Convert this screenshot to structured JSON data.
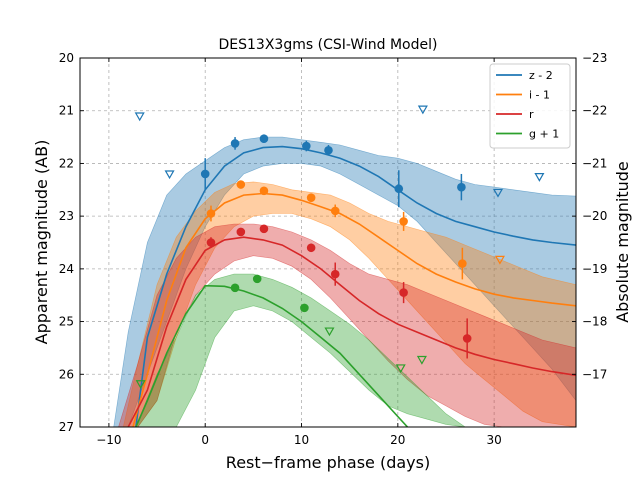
{
  "chart_data": {
    "type": "line",
    "title": "DES13X3gms (CSI-Wind Model)",
    "xlabel": "Rest−frame phase (days)",
    "ylabel": "Apparent magnitude (AB)",
    "y2label": "Absolute magnitude",
    "xlim": [
      -13,
      38.5
    ],
    "ylim": [
      20,
      27
    ],
    "y_inverted": true,
    "y2lim": [
      -23,
      -16
    ],
    "grid": true,
    "legend_position": "top-right",
    "xticks": [
      -10,
      0,
      10,
      20,
      30
    ],
    "xtick_labels": [
      "−10",
      "0",
      "10",
      "20",
      "30"
    ],
    "yticks": [
      20,
      21,
      22,
      23,
      24,
      25,
      26,
      27
    ],
    "ytick_labels": [
      "20",
      "21",
      "22",
      "23",
      "24",
      "25",
      "26",
      "27"
    ],
    "y2ticks": [
      -23,
      -22,
      -21,
      -20,
      -19,
      -18,
      -17
    ],
    "y2tick_labels": [
      "−23",
      "−22",
      "−21",
      "−20",
      "−19",
      "−18",
      "−17"
    ],
    "series": [
      {
        "name": "z - 2",
        "color": "#1f77b4",
        "model_x": [
          -7.2,
          -6,
          -4,
          -2,
          0,
          2,
          4,
          6,
          8,
          10,
          12,
          14,
          16,
          18,
          20,
          22,
          24,
          26,
          28,
          30,
          32,
          34,
          36,
          38.5
        ],
        "model_y": [
          27,
          25.3,
          24.1,
          23.2,
          22.5,
          22.05,
          21.8,
          21.7,
          21.68,
          21.72,
          21.8,
          21.9,
          22.05,
          22.25,
          22.5,
          22.75,
          22.95,
          23.1,
          23.2,
          23.3,
          23.38,
          23.45,
          23.5,
          23.55
        ],
        "band_x": [
          -9.5,
          -8,
          -6,
          -4,
          -2,
          0,
          2,
          4,
          6,
          8,
          10,
          12,
          14,
          16,
          18,
          20,
          22,
          24,
          26,
          28,
          30,
          32,
          34,
          36,
          38.5
        ],
        "band_upper": [
          27,
          25.2,
          23.5,
          22.6,
          22.2,
          21.95,
          21.7,
          21.55,
          21.5,
          21.5,
          21.55,
          21.6,
          21.65,
          21.75,
          21.85,
          21.9,
          22,
          22.15,
          22.3,
          22.4,
          22.45,
          22.5,
          22.55,
          22.6,
          22.62
        ],
        "band_lower": [
          27,
          27,
          26,
          25,
          24,
          23.2,
          22.6,
          22.2,
          22.05,
          22,
          22,
          22.05,
          22.2,
          22.4,
          22.6,
          22.8,
          23.1,
          23.5,
          23.9,
          24.3,
          24.7,
          25.1,
          25.5,
          25.9,
          26.5
        ],
        "points": [
          {
            "x": 0,
            "y": 22.2,
            "err": 0.3
          },
          {
            "x": 3.1,
            "y": 21.62,
            "err": 0.12
          },
          {
            "x": 6.1,
            "y": 21.53,
            "err": 0.08
          },
          {
            "x": 10.5,
            "y": 21.67,
            "err": 0.1
          },
          {
            "x": 12.8,
            "y": 21.75,
            "err": 0.1
          },
          {
            "x": 20.1,
            "y": 22.48,
            "err": 0.35
          },
          {
            "x": 26.6,
            "y": 22.45,
            "err": 0.25
          }
        ],
        "limits": [
          {
            "x": -6.8,
            "y": 21.1
          },
          {
            "x": -3.7,
            "y": 22.2
          },
          {
            "x": 22.6,
            "y": 20.97
          },
          {
            "x": 30.4,
            "y": 22.55
          },
          {
            "x": 34.7,
            "y": 22.25
          }
        ]
      },
      {
        "name": "i - 1",
        "color": "#ff7f0e",
        "model_x": [
          -7.5,
          -6,
          -4,
          -2,
          0,
          2,
          4,
          6,
          8,
          10,
          12,
          14,
          16,
          18,
          20,
          22,
          24,
          26,
          28,
          30,
          32,
          34,
          36,
          38.5
        ],
        "model_y": [
          27,
          26,
          24.6,
          23.6,
          23.05,
          22.75,
          22.6,
          22.57,
          22.6,
          22.7,
          22.82,
          22.95,
          23.15,
          23.4,
          23.65,
          23.9,
          24.1,
          24.25,
          24.38,
          24.48,
          24.55,
          24.6,
          24.65,
          24.7
        ],
        "band_x": [
          -8.5,
          -7,
          -5,
          -3,
          -1,
          1,
          3,
          5,
          7,
          9,
          11,
          13,
          15,
          17,
          19,
          21,
          23,
          25,
          27,
          29,
          31,
          33,
          35,
          38.5
        ],
        "band_upper": [
          27,
          25.8,
          24.3,
          23.4,
          22.9,
          22.55,
          22.38,
          22.35,
          22.4,
          22.5,
          22.55,
          22.6,
          22.75,
          22.95,
          23.1,
          23.2,
          23.3,
          23.4,
          23.55,
          23.7,
          23.85,
          24,
          24.15,
          24.3
        ],
        "band_lower": [
          27,
          27,
          26.5,
          25.3,
          24.3,
          23.6,
          23.2,
          23,
          22.95,
          22.95,
          23.05,
          23.2,
          23.45,
          23.8,
          24.2,
          24.6,
          25,
          25.4,
          25.8,
          26.1,
          26.4,
          26.7,
          26.9,
          27
        ],
        "points": [
          {
            "x": 0.6,
            "y": 22.95,
            "err": 0.15
          },
          {
            "x": 3.7,
            "y": 22.4,
            "err": 0.06
          },
          {
            "x": 6.1,
            "y": 22.52,
            "err": 0.07
          },
          {
            "x": 11,
            "y": 22.65,
            "err": 0.08
          },
          {
            "x": 13.5,
            "y": 22.9,
            "err": 0.12
          },
          {
            "x": 20.6,
            "y": 23.1,
            "err": 0.18
          },
          {
            "x": 26.7,
            "y": 23.9,
            "err": 0.3
          }
        ],
        "limits": [
          {
            "x": 30.6,
            "y": 23.82
          }
        ]
      },
      {
        "name": "r",
        "color": "#d62728",
        "model_x": [
          -8,
          -6,
          -4,
          -2,
          0,
          2,
          4,
          6,
          8,
          10,
          12,
          14,
          16,
          18,
          20,
          22,
          24,
          26,
          28,
          30,
          32,
          34,
          36,
          38.5
        ],
        "model_y": [
          27,
          26.3,
          25.1,
          24.2,
          23.65,
          23.45,
          23.4,
          23.45,
          23.55,
          23.75,
          24,
          24.3,
          24.6,
          24.85,
          25.05,
          25.2,
          25.35,
          25.5,
          25.62,
          25.72,
          25.8,
          25.88,
          25.95,
          26.02
        ],
        "band_x": [
          -9,
          -7,
          -5,
          -3,
          -1,
          1,
          3,
          5,
          7,
          9,
          11,
          13,
          15,
          17,
          19,
          21,
          23,
          25,
          27,
          29,
          31,
          33,
          35,
          38.5
        ],
        "band_upper": [
          27,
          25.8,
          24.5,
          23.8,
          23.4,
          23.2,
          23.15,
          23.15,
          23.2,
          23.3,
          23.45,
          23.65,
          23.9,
          24.1,
          24.2,
          24.3,
          24.45,
          24.6,
          24.75,
          24.9,
          25.05,
          25.2,
          25.35,
          25.5
        ],
        "band_lower": [
          27,
          27,
          26.5,
          25.2,
          24.5,
          24.1,
          23.85,
          23.75,
          23.8,
          23.95,
          24.2,
          24.55,
          24.95,
          25.35,
          25.75,
          26.1,
          26.4,
          26.6,
          26.8,
          26.95,
          27,
          27,
          27,
          27
        ],
        "points": [
          {
            "x": 0.6,
            "y": 23.5,
            "err": 0.1
          },
          {
            "x": 3.7,
            "y": 23.3,
            "err": 0.06
          },
          {
            "x": 6.1,
            "y": 23.24,
            "err": 0.06
          },
          {
            "x": 11,
            "y": 23.6,
            "err": 0.08
          },
          {
            "x": 13.5,
            "y": 24.1,
            "err": 0.22
          },
          {
            "x": 20.6,
            "y": 24.45,
            "err": 0.2
          },
          {
            "x": 27.2,
            "y": 25.32,
            "err": 0.38
          }
        ],
        "limits": []
      },
      {
        "name": "g + 1",
        "color": "#2ca02c",
        "model_x": [
          -7.2,
          -6,
          -4,
          -2,
          0,
          2,
          4,
          6,
          8,
          10,
          12,
          14,
          16,
          18,
          20,
          22,
          24,
          26,
          28,
          30
        ],
        "model_y": [
          27,
          26.5,
          25.6,
          24.85,
          24.32,
          24.33,
          24.42,
          24.55,
          24.75,
          25,
          25.3,
          25.6,
          26,
          26.4,
          26.8,
          27.2,
          27.5,
          27.8,
          28.1,
          28.4
        ],
        "band_x": [
          -7.2,
          -5,
          -3,
          -1,
          1,
          3,
          5,
          7,
          9,
          11,
          13,
          15,
          17,
          19,
          21,
          23,
          25,
          27,
          29,
          31,
          32
        ],
        "band_upper": [
          27,
          26,
          25.3,
          24.5,
          24.2,
          24.1,
          24.1,
          24.2,
          24.35,
          24.55,
          24.8,
          25.05,
          25.35,
          25.7,
          26.05,
          26.4,
          26.75,
          27,
          27,
          27,
          27
        ],
        "band_lower": [
          27,
          27,
          27,
          26.3,
          25.3,
          24.8,
          24.7,
          24.8,
          25,
          25.3,
          25.6,
          25.95,
          26.3,
          26.6,
          26.75,
          26.85,
          26.95,
          27,
          27,
          27,
          27
        ],
        "points": [
          {
            "x": 3.1,
            "y": 24.36,
            "err": 0.05
          },
          {
            "x": 5.4,
            "y": 24.19,
            "err": 0.05
          },
          {
            "x": 10.3,
            "y": 24.74,
            "err": 0.07
          }
        ],
        "limits": [
          {
            "x": -6.7,
            "y": 26.18
          },
          {
            "x": 12.9,
            "y": 25.18
          },
          {
            "x": 20.3,
            "y": 25.88
          },
          {
            "x": 22.5,
            "y": 25.72
          }
        ]
      }
    ]
  }
}
